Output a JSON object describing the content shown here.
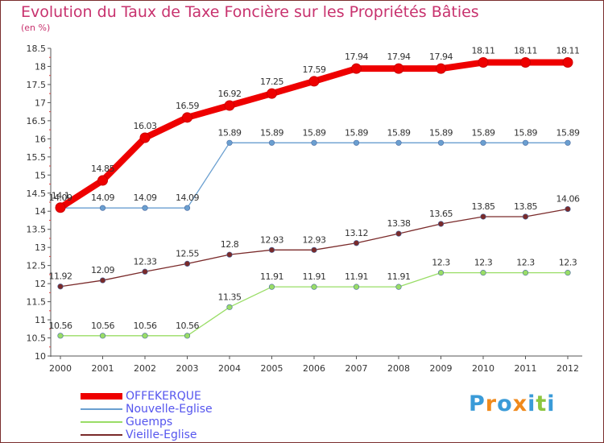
{
  "header": {
    "title": "Evolution du Taux de Taxe Foncière sur les Propriétés Bâties",
    "subtitle": "(en %)"
  },
  "logo": {
    "letters": [
      "P",
      "r",
      "o",
      "x",
      "i",
      "t",
      "i"
    ],
    "colors": [
      "#3a9bd8",
      "#f08a1c",
      "#3a9bd8",
      "#f08a1c",
      "#3a9bd8",
      "#8cc63f",
      "#3a9bd8"
    ]
  },
  "chart_data": {
    "type": "line",
    "title": "Evolution du Taux de Taxe Foncière sur les Propriétés Bâties",
    "subtitle": "(en %)",
    "xlabel": "",
    "ylabel": "",
    "x": [
      "2000",
      "2001",
      "2002",
      "2003",
      "2004",
      "2005",
      "2006",
      "2007",
      "2008",
      "2009",
      "2010",
      "2011",
      "2012"
    ],
    "ylim": [
      10,
      18.5
    ],
    "yticks": [
      10,
      10.5,
      11,
      11.5,
      12,
      12.5,
      13,
      13.5,
      14,
      14.5,
      15,
      15.5,
      16,
      16.5,
      17,
      17.5,
      18,
      18.5
    ],
    "grid": false,
    "legend_position": "bottom-left",
    "series": [
      {
        "name": "OFFEKERQUE",
        "color": "#ee0000",
        "values": [
          14.1,
          14.85,
          16.03,
          16.59,
          16.92,
          17.25,
          17.59,
          17.94,
          17.94,
          17.94,
          18.11,
          18.11,
          18.11
        ],
        "labels": [
          "14.1",
          "14.85",
          "16.03",
          "16.59",
          "16.92",
          "17.25",
          "17.59",
          "17.94",
          "17.94",
          "17.94",
          "18.11",
          "18.11",
          "18.11"
        ]
      },
      {
        "name": "Nouvelle-Eglise",
        "color": "#6a9fd0",
        "values": [
          14.09,
          14.09,
          14.09,
          14.09,
          15.89,
          15.89,
          15.89,
          15.89,
          15.89,
          15.89,
          15.89,
          15.89,
          15.89
        ],
        "labels": [
          "14.09",
          "14.09",
          "14.09",
          "14.09",
          "15.89",
          "15.89",
          "15.89",
          "15.89",
          "15.89",
          "15.89",
          "15.89",
          "15.89",
          "15.89"
        ]
      },
      {
        "name": "Guemps",
        "color": "#99dd66",
        "values": [
          10.56,
          10.56,
          10.56,
          10.56,
          11.35,
          11.91,
          11.91,
          11.91,
          11.91,
          12.3,
          12.3,
          12.3,
          12.3
        ],
        "labels": [
          "10.56",
          "10.56",
          "10.56",
          "10.56",
          "11.35",
          "11.91",
          "11.91",
          "11.91",
          "11.91",
          "12.3",
          "12.3",
          "12.3",
          "12.3"
        ]
      },
      {
        "name": "Vieille-Eglise",
        "color": "#7a2a2a",
        "values": [
          11.92,
          12.09,
          12.33,
          12.55,
          12.8,
          12.93,
          12.93,
          13.12,
          13.38,
          13.65,
          13.85,
          13.85,
          14.06
        ],
        "labels": [
          "11.92",
          "12.09",
          "12.33",
          "12.55",
          "12.8",
          "12.93",
          "12.93",
          "13.12",
          "13.38",
          "13.65",
          "13.85",
          "13.85",
          "14.06"
        ]
      }
    ]
  }
}
